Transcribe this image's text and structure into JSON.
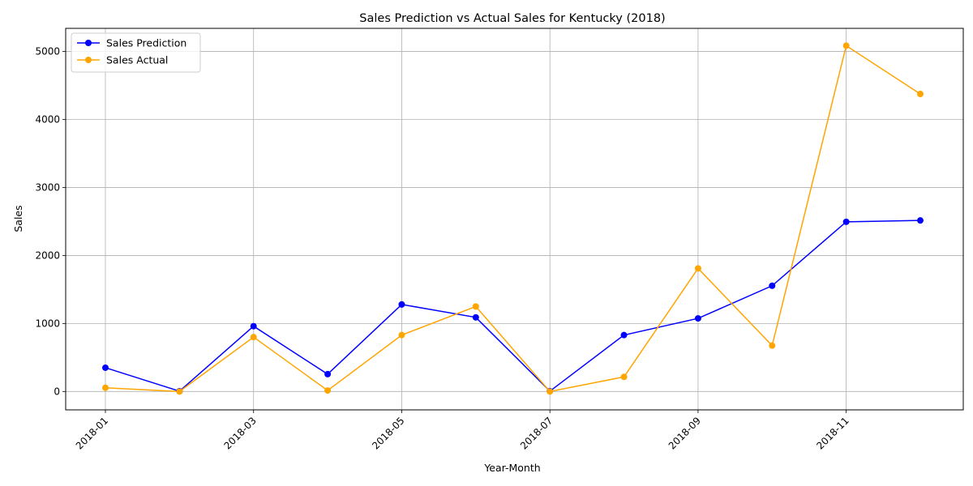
{
  "chart_data": {
    "type": "line",
    "title": "Sales Prediction vs Actual Sales for Kentucky (2018)",
    "xlabel": "Year-Month",
    "ylabel": "Sales",
    "x": [
      "2018-01",
      "2018-02",
      "2018-03",
      "2018-04",
      "2018-05",
      "2018-06",
      "2018-07",
      "2018-08",
      "2018-09",
      "2018-10",
      "2018-11",
      "2018-12"
    ],
    "x_ticks": [
      "2018-01",
      "2018-03",
      "2018-05",
      "2018-07",
      "2018-09",
      "2018-11"
    ],
    "y_ticks": [
      0,
      1000,
      2000,
      3000,
      4000,
      5000
    ],
    "ylim": [
      -270,
      5340
    ],
    "grid": true,
    "legend": "top-left",
    "series": [
      {
        "name": "Sales Prediction",
        "color": "#0000ff",
        "values": [
          350,
          5,
          960,
          255,
          1280,
          1090,
          5,
          830,
          1075,
          1555,
          2495,
          2515
        ]
      },
      {
        "name": "Sales Actual",
        "color": "#ffa500",
        "values": [
          55,
          0,
          800,
          15,
          830,
          1250,
          0,
          215,
          1810,
          675,
          5085,
          4375
        ]
      }
    ]
  }
}
